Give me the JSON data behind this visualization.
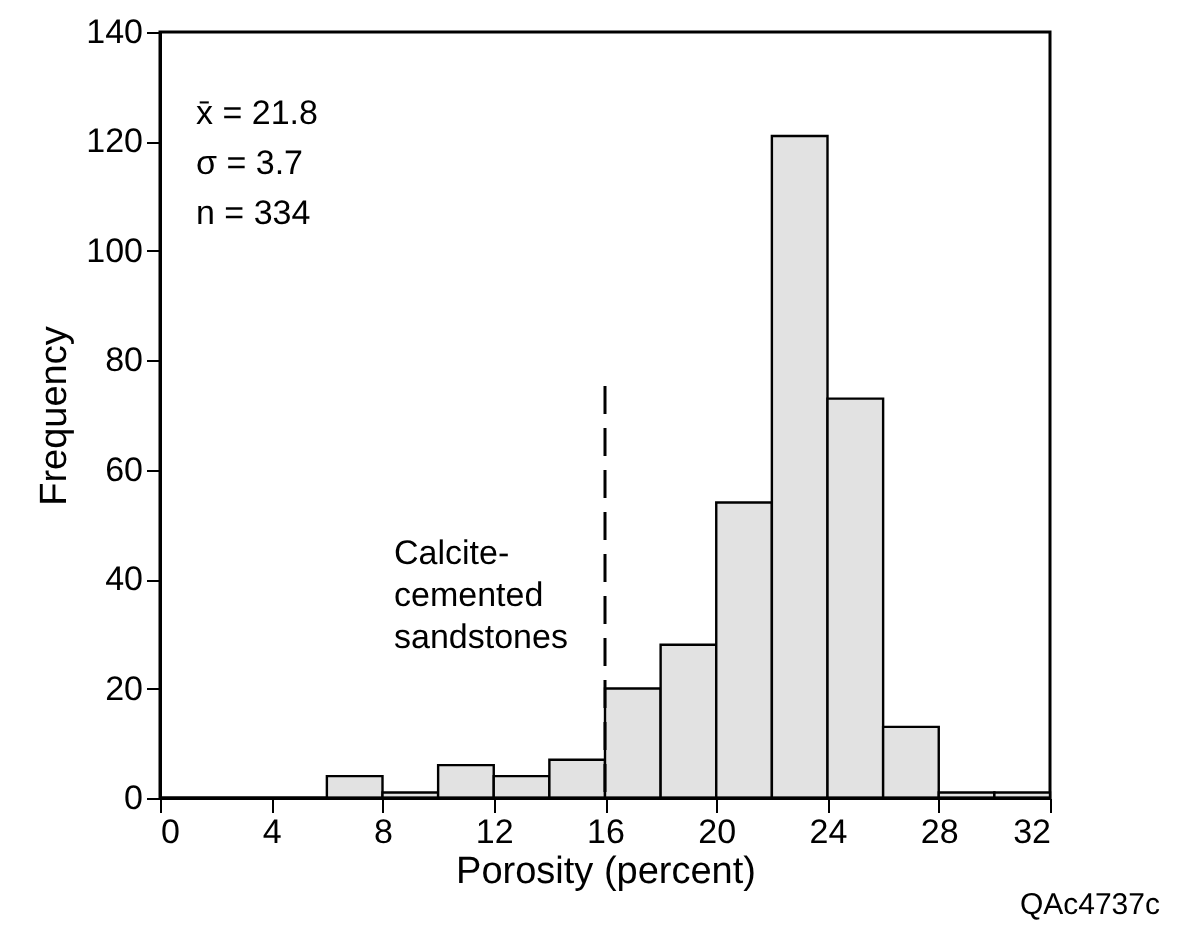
{
  "chart_data": {
    "type": "histogram",
    "xlabel": "Porosity (percent)",
    "ylabel": "Frequency",
    "bins": [
      6,
      8,
      10,
      12,
      14,
      16,
      18,
      20,
      22,
      24,
      26,
      28,
      30,
      32
    ],
    "values": [
      4,
      1,
      6,
      4,
      7,
      20,
      28,
      54,
      121,
      73,
      13,
      1,
      1
    ],
    "color": "#e2e2e2",
    "xlim": [
      0,
      32
    ],
    "xticks": [
      0,
      4,
      8,
      12,
      16,
      20,
      24,
      28,
      32
    ],
    "ylim": [
      0,
      140
    ],
    "yticks": [
      0,
      20,
      40,
      60,
      80,
      100,
      120,
      140
    ],
    "grid": false,
    "ref_lines": [
      {
        "axis": "x",
        "value": 16,
        "line_style": "dashed",
        "color": "#000000"
      }
    ],
    "annotations": [
      "x̄ = 21.8",
      "σ = 3.7",
      "n = 334",
      "Calcite-\ncemented\nsandstones",
      "QAc4737c"
    ]
  }
}
